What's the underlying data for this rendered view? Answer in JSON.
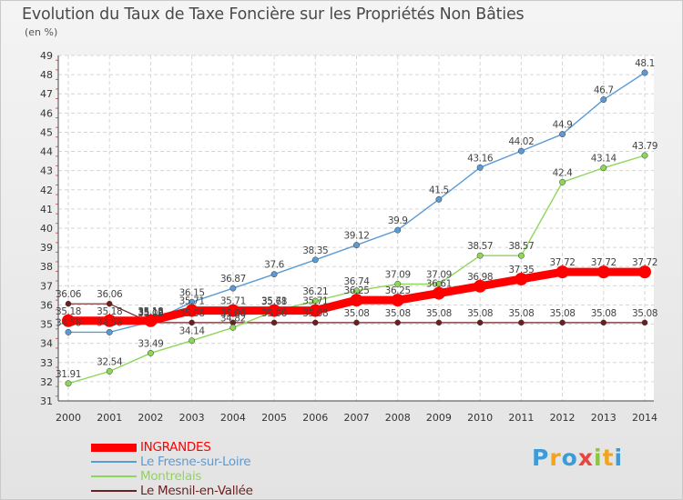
{
  "title": "Evolution du Taux de Taxe Foncière sur les Propriétés Non Bâties",
  "unit_label": "(en %)",
  "logo": {
    "letters": [
      "P",
      "r",
      "o",
      "x",
      "i",
      "t",
      "i"
    ],
    "colors": [
      "#3d9bd8",
      "#f2a51c",
      "#3d9bd8",
      "#e8453c",
      "#8cc63f",
      "#f2a51c",
      "#3d9bd8"
    ]
  },
  "chart_data": {
    "type": "line",
    "title": "Evolution du Taux de Taxe Foncière sur les Propriétés Non Bâties",
    "ylabel": "(en %)",
    "xlabel": "",
    "x": [
      "2000",
      "2001",
      "2002",
      "2003",
      "2004",
      "2005",
      "2006",
      "2007",
      "2008",
      "2009",
      "2010",
      "2011",
      "2012",
      "2013",
      "2014"
    ],
    "ylim": [
      31,
      49
    ],
    "yticks": [
      "31",
      "32",
      "33",
      "34",
      "35",
      "36",
      "37",
      "38",
      "39",
      "40",
      "41",
      "42",
      "43",
      "44",
      "45",
      "46",
      "47",
      "48",
      "49"
    ],
    "grid": true,
    "legend_position": "bottom-left",
    "series": [
      {
        "name": "INGRANDES",
        "color": "#ff0000",
        "values": [
          35.18,
          35.18,
          35.18,
          35.71,
          35.71,
          35.71,
          35.71,
          36.25,
          36.25,
          36.61,
          36.98,
          37.35,
          37.72,
          37.72,
          37.72
        ],
        "labels": [
          "35.18",
          "35.18",
          "35.18",
          "35.71",
          "35.71",
          "35.71",
          "35.71",
          "36.25",
          "36.25",
          "36.61",
          "36.98",
          "37.35",
          "37.72",
          "37.72",
          "37.72"
        ]
      },
      {
        "name": "Le Fresne-sur-Loire",
        "color": "#5b9bd5",
        "values": [
          34.58,
          34.58,
          35.12,
          36.15,
          36.87,
          37.6,
          38.35,
          39.12,
          39.9,
          41.5,
          43.16,
          44.02,
          44.9,
          46.7,
          48.1
        ],
        "labels": [
          "34.58",
          "34.58",
          "35.12",
          "36.15",
          "36.87",
          "37.6",
          "38.35",
          "39.12",
          "39.9",
          "41.5",
          "43.16",
          "44.02",
          "44.9",
          "46.7",
          "48.1"
        ]
      },
      {
        "name": "Montrelais",
        "color": "#8ed65a",
        "values": [
          31.91,
          32.54,
          33.49,
          34.14,
          34.82,
          35.68,
          36.21,
          36.74,
          37.09,
          37.09,
          38.57,
          38.57,
          42.4,
          43.14,
          43.79
        ],
        "labels": [
          "31.91",
          "32.54",
          "33.49",
          "34.14",
          "34.82",
          "35.68",
          "36.21",
          "36.74",
          "37.09",
          "37.09",
          "38.57",
          "38.57",
          "42.4",
          "43.14",
          "43.79"
        ]
      },
      {
        "name": "Le Mesnil-en-Vallée",
        "color": "#6b2020",
        "values": [
          36.06,
          36.06,
          35.08,
          35.08,
          35.08,
          35.08,
          35.08,
          35.08,
          35.08,
          35.08,
          35.08,
          35.08,
          35.08,
          35.08,
          35.08
        ],
        "labels": [
          "36.06",
          "36.06",
          "35.08",
          "35.08",
          "35.08",
          "35.08",
          "35.08",
          "35.08",
          "35.08",
          "35.08",
          "35.08",
          "35.08",
          "35.08",
          "35.08",
          "35.08"
        ]
      }
    ]
  }
}
